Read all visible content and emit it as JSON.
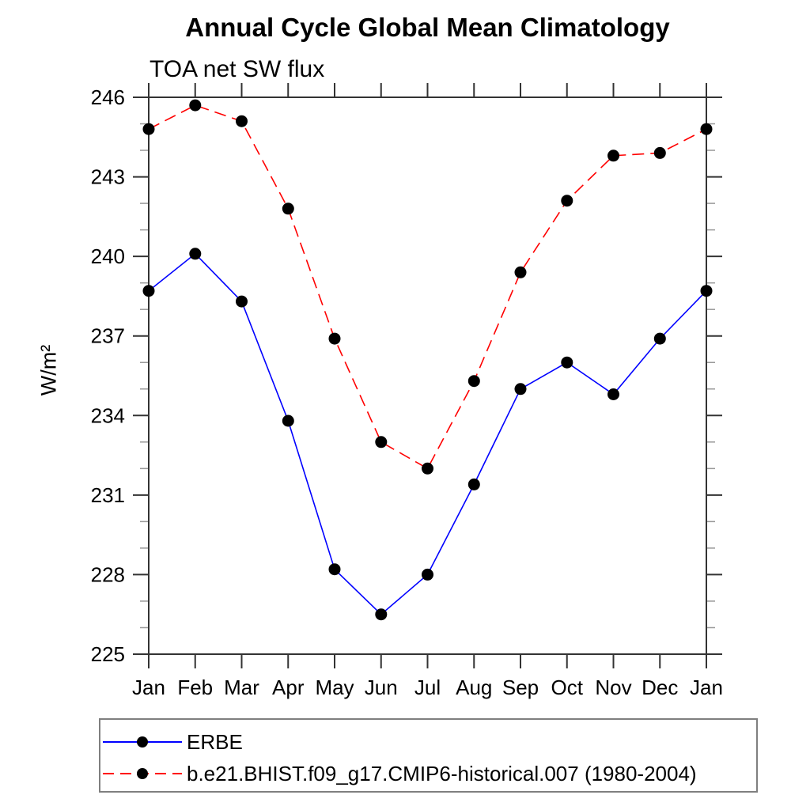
{
  "chart_data": {
    "type": "line",
    "title": "Annual Cycle Global Mean Climatology",
    "subtitle": "TOA net SW flux",
    "ylabel": "W/m²",
    "xlabel": "",
    "categories": [
      "Jan",
      "Feb",
      "Mar",
      "Apr",
      "May",
      "Jun",
      "Jul",
      "Aug",
      "Sep",
      "Oct",
      "Nov",
      "Dec",
      "Jan"
    ],
    "ylim": [
      225,
      246
    ],
    "ytick_major_step": 3,
    "ytick_minor_step": 1,
    "ytick_major_labels": [
      "225",
      "228",
      "231",
      "234",
      "237",
      "240",
      "243",
      "246"
    ],
    "grid": false,
    "legend_position": "bottom-left",
    "series": [
      {
        "name": "ERBE",
        "line_color": "#0000ff",
        "line_style": "solid",
        "marker": "filled-circle",
        "marker_color": "#000000",
        "values": [
          238.7,
          240.1,
          238.3,
          233.8,
          228.2,
          226.5,
          228.0,
          231.4,
          235.0,
          236.0,
          234.8,
          236.9,
          238.7
        ]
      },
      {
        "name": "b.e21.BHIST.f09_g17.CMIP6-historical.007 (1980-2004)",
        "line_color": "#ff0000",
        "line_style": "dashed",
        "marker": "filled-circle",
        "marker_color": "#000000",
        "values": [
          244.8,
          245.7,
          245.1,
          241.8,
          236.9,
          233.0,
          232.0,
          235.3,
          239.4,
          242.1,
          243.8,
          243.9,
          244.8
        ]
      }
    ]
  }
}
